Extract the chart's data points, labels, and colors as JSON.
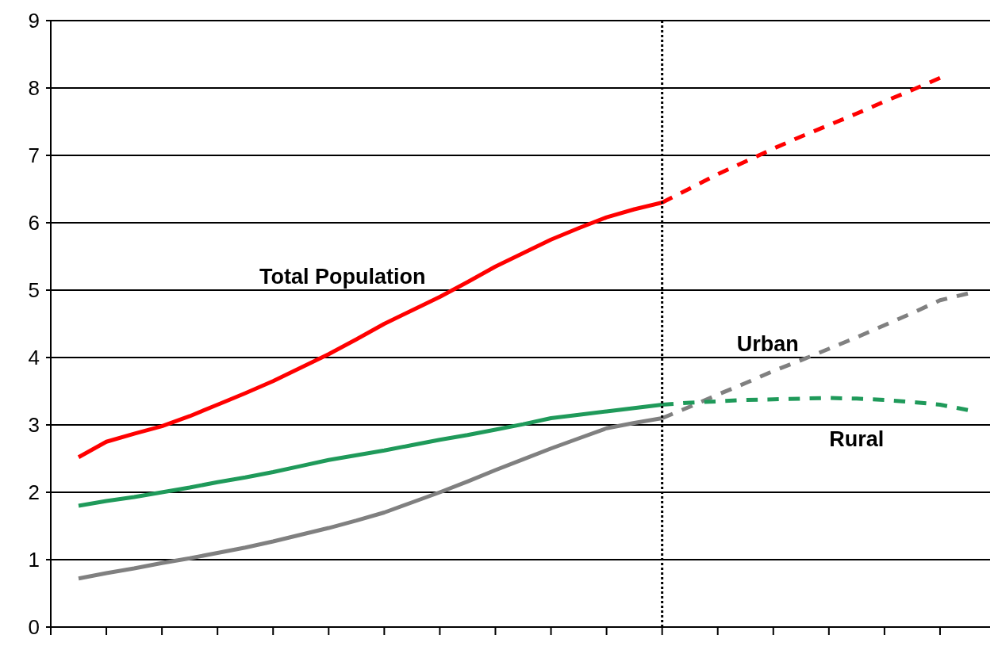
{
  "chart_data": {
    "type": "line",
    "categories": [
      null,
      null,
      null,
      null,
      null,
      null,
      null,
      null,
      null,
      null,
      null,
      null,
      null,
      null,
      null,
      null,
      null,
      null,
      null,
      null,
      null,
      null,
      null,
      null,
      null,
      null,
      null,
      null,
      null,
      null,
      null,
      null,
      null
    ],
    "ylim": [
      0,
      9
    ],
    "yticks": [
      0,
      1,
      2,
      3,
      4,
      5,
      6,
      7,
      8,
      9
    ],
    "grid": "y",
    "tick_labels": "y",
    "series": [
      {
        "name": "Total Population",
        "color": "#ff0000",
        "line_style": "solid",
        "values": [
          2.52,
          2.75,
          2.87,
          2.98,
          3.13,
          3.3,
          3.47,
          3.65,
          3.85,
          4.05,
          4.27,
          4.5,
          4.7,
          4.9,
          5.12,
          5.35,
          5.55,
          5.75,
          5.92,
          6.08,
          6.2,
          6.3,
          null,
          null,
          null,
          null,
          null,
          null,
          null,
          null,
          null,
          null,
          null
        ]
      },
      {
        "color": "#ff0000",
        "line_style": "dashed",
        "values": [
          null,
          null,
          null,
          null,
          null,
          null,
          null,
          null,
          null,
          null,
          null,
          null,
          null,
          null,
          null,
          null,
          null,
          null,
          null,
          null,
          null,
          6.3,
          6.51,
          6.72,
          6.91,
          7.1,
          7.28,
          7.45,
          7.62,
          7.8,
          7.97,
          8.15,
          null
        ]
      },
      {
        "color": "#808080",
        "line_style": "solid",
        "values": [
          0.72,
          0.8,
          0.87,
          0.95,
          1.02,
          1.1,
          1.18,
          1.27,
          1.37,
          1.47,
          1.58,
          1.7,
          1.85,
          2.0,
          2.16,
          2.33,
          2.49,
          2.65,
          2.8,
          2.95,
          3.03,
          3.1,
          null,
          null,
          null,
          null,
          null,
          null,
          null,
          null,
          null,
          null,
          null
        ]
      },
      {
        "name": "Urban",
        "color": "#808080",
        "line_style": "dashed",
        "values": [
          null,
          null,
          null,
          null,
          null,
          null,
          null,
          null,
          null,
          null,
          null,
          null,
          null,
          null,
          null,
          null,
          null,
          null,
          null,
          null,
          null,
          3.1,
          3.27,
          3.45,
          3.62,
          3.8,
          3.96,
          4.13,
          4.3,
          4.48,
          4.66,
          4.85,
          4.95
        ]
      },
      {
        "color": "#1f9a5a",
        "line_style": "solid",
        "values": [
          1.8,
          1.87,
          1.93,
          2.0,
          2.07,
          2.15,
          2.22,
          2.3,
          2.39,
          2.48,
          2.55,
          2.62,
          2.7,
          2.78,
          2.85,
          2.93,
          3.01,
          3.1,
          3.15,
          3.2,
          3.25,
          3.3,
          null,
          null,
          null,
          null,
          null,
          null,
          null,
          null,
          null,
          null,
          null
        ]
      },
      {
        "name": "Rural",
        "color": "#1f9a5a",
        "line_style": "dashed",
        "values": [
          null,
          null,
          null,
          null,
          null,
          null,
          null,
          null,
          null,
          null,
          null,
          null,
          null,
          null,
          null,
          null,
          null,
          null,
          null,
          null,
          null,
          3.3,
          3.33,
          3.35,
          3.37,
          3.38,
          3.39,
          3.4,
          3.39,
          3.37,
          3.34,
          3.3,
          3.22
        ]
      }
    ]
  }
}
